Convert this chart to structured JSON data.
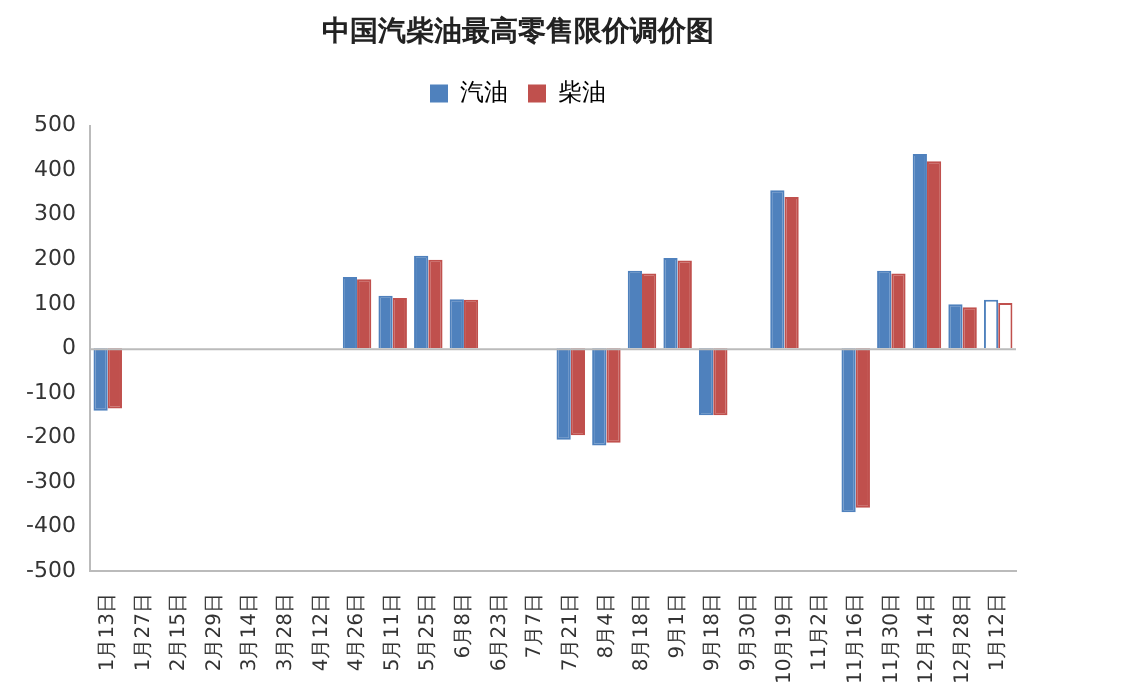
{
  "chart_data": {
    "type": "bar",
    "title": "中国汽柴油最高零售限价调价图",
    "categories": [
      "1月13日",
      "1月27日",
      "2月15日",
      "2月29日",
      "3月14日",
      "3月28日",
      "4月12日",
      "4月26日",
      "5月11日",
      "5月25日",
      "6月8日",
      "6月23日",
      "7月7日",
      "7月21日",
      "8月4日",
      "8月18日",
      "9月1日",
      "9月18日",
      "9月30日",
      "10月19日",
      "11月2日",
      "11月16日",
      "11月30日",
      "12月14日",
      "12月28日",
      "1月12日"
    ],
    "series": [
      {
        "name": "汽油",
        "color": "#4f81bd",
        "colors": [
          "#4f81bd",
          "#4f81bd",
          "#4f81bd",
          "#4f81bd",
          "#4f81bd",
          "#4f81bd",
          "#4f81bd",
          "#4f81bd",
          "#4f81bd",
          "#4f81bd",
          "#4f81bd",
          "#4f81bd",
          "#4f81bd",
          "#4f81bd",
          "#4f81bd",
          "#4f81bd",
          "#4f81bd",
          "#4f81bd",
          "#4f81bd",
          "#4f81bd",
          "#4f81bd",
          "#4f81bd",
          "#4f81bd",
          "#4f81bd",
          "#4f81bd",
          "#ffffff"
        ],
        "values": [
          -140,
          0,
          0,
          0,
          0,
          0,
          0,
          160,
          118,
          208,
          110,
          0,
          0,
          -205,
          -218,
          174,
          203,
          -150,
          0,
          355,
          0,
          -368,
          174,
          436,
          99,
          109
        ]
      },
      {
        "name": "柴油",
        "color": "#c0504d",
        "colors": [
          "#c0504d",
          "#c0504d",
          "#c0504d",
          "#c0504d",
          "#c0504d",
          "#c0504d",
          "#c0504d",
          "#c0504d",
          "#c0504d",
          "#c0504d",
          "#c0504d",
          "#c0504d",
          "#c0504d",
          "#c0504d",
          "#c0504d",
          "#c0504d",
          "#c0504d",
          "#c0504d",
          "#c0504d",
          "#c0504d",
          "#c0504d",
          "#c0504d",
          "#c0504d",
          "#c0504d",
          "#c0504d",
          "#ffffff"
        ],
        "values": [
          -135,
          0,
          0,
          0,
          0,
          0,
          0,
          155,
          113,
          199,
          109,
          0,
          0,
          -195,
          -212,
          168,
          197,
          -150,
          0,
          340,
          0,
          -358,
          168,
          420,
          92,
          102
        ]
      }
    ],
    "ylim": [
      -500,
      500
    ],
    "yticks": [
      -500,
      -400,
      -300,
      -200,
      -100,
      0,
      100,
      200,
      300,
      400,
      500
    ],
    "legend": "top"
  }
}
